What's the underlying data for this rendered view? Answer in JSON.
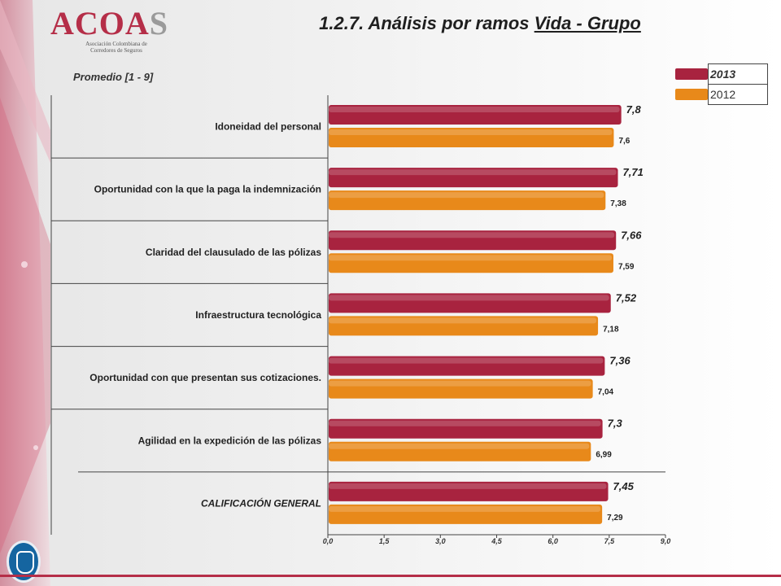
{
  "header": {
    "logo_word": "ACOA",
    "logo_word_s": "S",
    "logo_subtitle_line1": "Asociación Colombiana de",
    "logo_subtitle_line2": "Corredores de Seguros",
    "title_prefix": "1.2.7. Análisis por ramos ",
    "title_underlined": "Vida - Grupo"
  },
  "legend": [
    {
      "label": "2013",
      "color": "#a8233f",
      "bold": true
    },
    {
      "label": "2012",
      "color": "#e8891a",
      "bold": false
    }
  ],
  "chart_data": {
    "type": "bar",
    "orientation": "horizontal",
    "subtitle": "Promedio [1 - 9]",
    "categories": [
      "Idoneidad del personal",
      "Oportunidad con la que la paga la indemnización",
      "Claridad del clausulado de las pólizas",
      "Infraestructura tecnológica",
      "Oportunidad con que presentan sus cotizaciones.",
      "Agilidad en la expedición de las pólizas",
      "CALIFICACIÓN GENERAL"
    ],
    "series": [
      {
        "name": "2013",
        "values": [
          7.8,
          7.71,
          7.66,
          7.52,
          7.36,
          7.3,
          7.45
        ],
        "labels": [
          "7,8",
          "7,71",
          "7,66",
          "7,52",
          "7,36",
          "7,3",
          "7,45"
        ]
      },
      {
        "name": "2012",
        "values": [
          7.6,
          7.38,
          7.59,
          7.18,
          7.04,
          6.99,
          7.29
        ],
        "labels": [
          "7,6",
          "7,38",
          "7,59",
          "7,18",
          "7,04",
          "6,99",
          "7,29"
        ]
      }
    ],
    "xlim": [
      0,
      9
    ],
    "xticks": [
      "0,0",
      "1,5",
      "3,0",
      "4,5",
      "6,0",
      "7,5",
      "9,0"
    ],
    "colors": {
      "2013": "#a8233f",
      "2012": "#e8891a"
    },
    "legend_position": "top-right"
  }
}
